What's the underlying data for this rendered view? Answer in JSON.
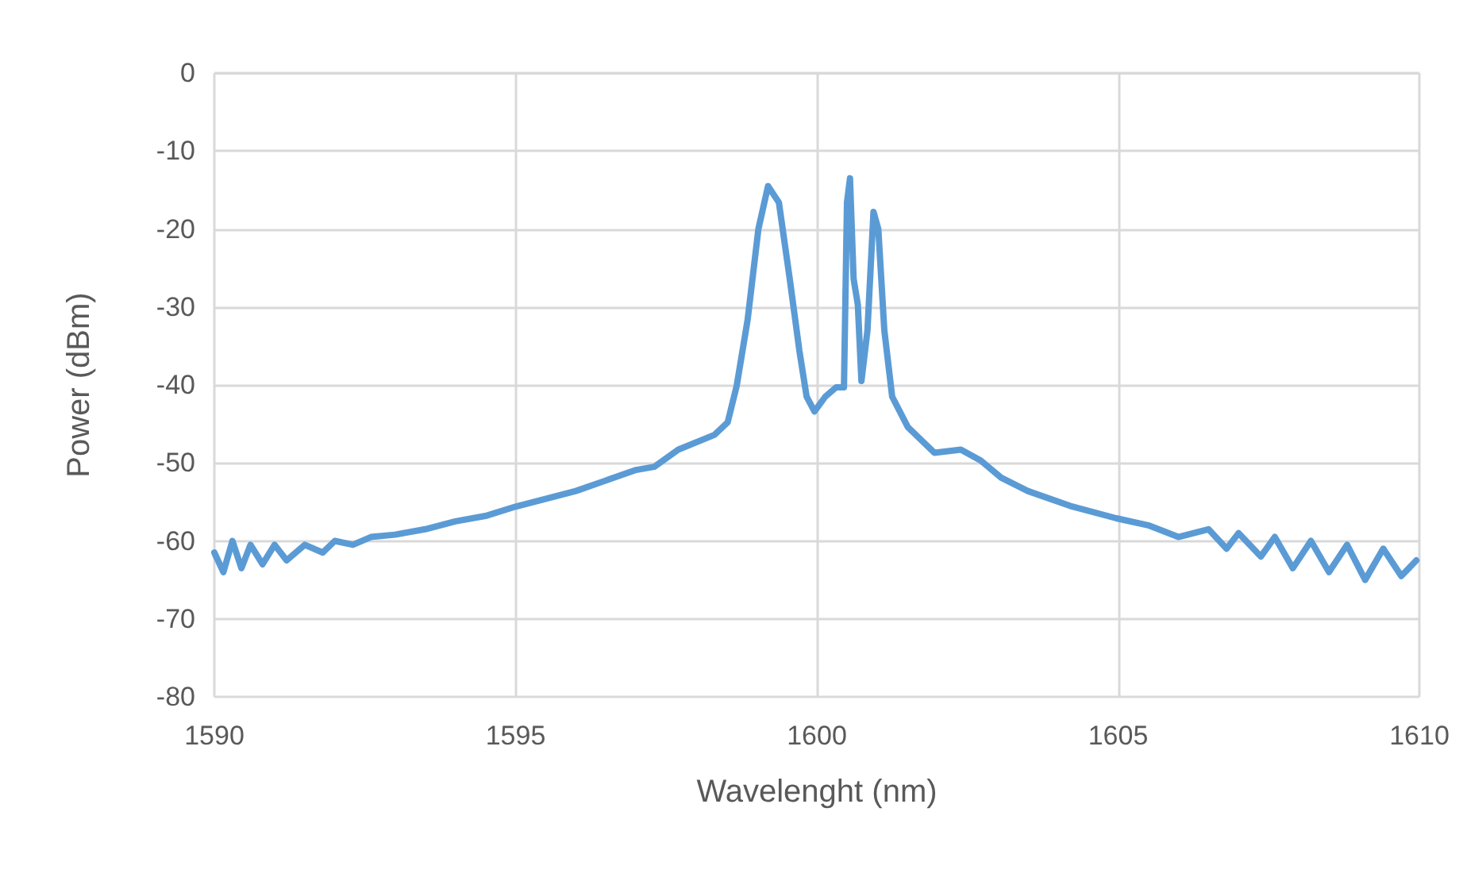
{
  "chart_data": {
    "type": "line",
    "xlabel": "Wavelenght (nm)",
    "ylabel": "Power (dBm)",
    "xlim": [
      1590,
      1610
    ],
    "xticks": [
      1590,
      1595,
      1600,
      1605,
      1610
    ],
    "ylim": [
      -80,
      0
    ],
    "yticks": [
      -80,
      -70,
      -60,
      -50,
      -40,
      -30,
      -20,
      -10,
      0
    ],
    "grid": true,
    "marker": "none",
    "line_style": "solid",
    "series": [
      {
        "color": "#5b9bd5",
        "x": [
          1590,
          1590.15,
          1590.3,
          1590.45,
          1590.6,
          1590.8,
          1591,
          1591.2,
          1591.5,
          1591.8,
          1592,
          1592.3,
          1592.6,
          1593,
          1593.5,
          1594,
          1594.5,
          1595,
          1596,
          1597,
          1597.3,
          1597.7,
          1598.3,
          1598.52,
          1598.67,
          1598.85,
          1599.03,
          1599.19,
          1599.37,
          1599.55,
          1599.71,
          1599.83,
          1599.96,
          1600.14,
          1600.32,
          1600.45,
          1600.5,
          1600.55,
          1600.61,
          1600.68,
          1600.74,
          1600.84,
          1600.94,
          1601.02,
          1601.12,
          1601.25,
          1601.51,
          1601.95,
          1602.39,
          1602.72,
          1603.06,
          1603.5,
          1604.2,
          1604.97,
          1605.5,
          1606,
          1606.5,
          1606.8,
          1607,
          1607.37,
          1607.6,
          1607.9,
          1608.2,
          1608.5,
          1608.8,
          1609.1,
          1609.4,
          1609.7,
          1609.95
        ],
        "values": [
          -61.5,
          -64,
          -60,
          -63.5,
          -60.5,
          -63,
          -60.5,
          -62.5,
          -60.5,
          -61.5,
          -60,
          -60.5,
          -59.5,
          -59.2,
          -58.5,
          -57.5,
          -56.8,
          -55.6,
          -53.6,
          -50.9,
          -50.5,
          -48.3,
          -46.4,
          -44.8,
          -40.1,
          -31.7,
          -20,
          -14.5,
          -16.6,
          -26.4,
          -35.6,
          -41.5,
          -43.4,
          -41.5,
          -40.3,
          -40.3,
          -16.6,
          -13.5,
          -26.4,
          -29.7,
          -39.5,
          -33,
          -17.8,
          -20,
          -33,
          -41.5,
          -45.4,
          -48.7,
          -48.3,
          -49.7,
          -51.9,
          -53.6,
          -55.5,
          -57.1,
          -58,
          -59.5,
          -58.5,
          -61,
          -59,
          -62,
          -59.5,
          -63.5,
          -60,
          -64,
          -60.5,
          -65,
          -61,
          -64.5,
          -62.5
        ]
      }
    ]
  }
}
